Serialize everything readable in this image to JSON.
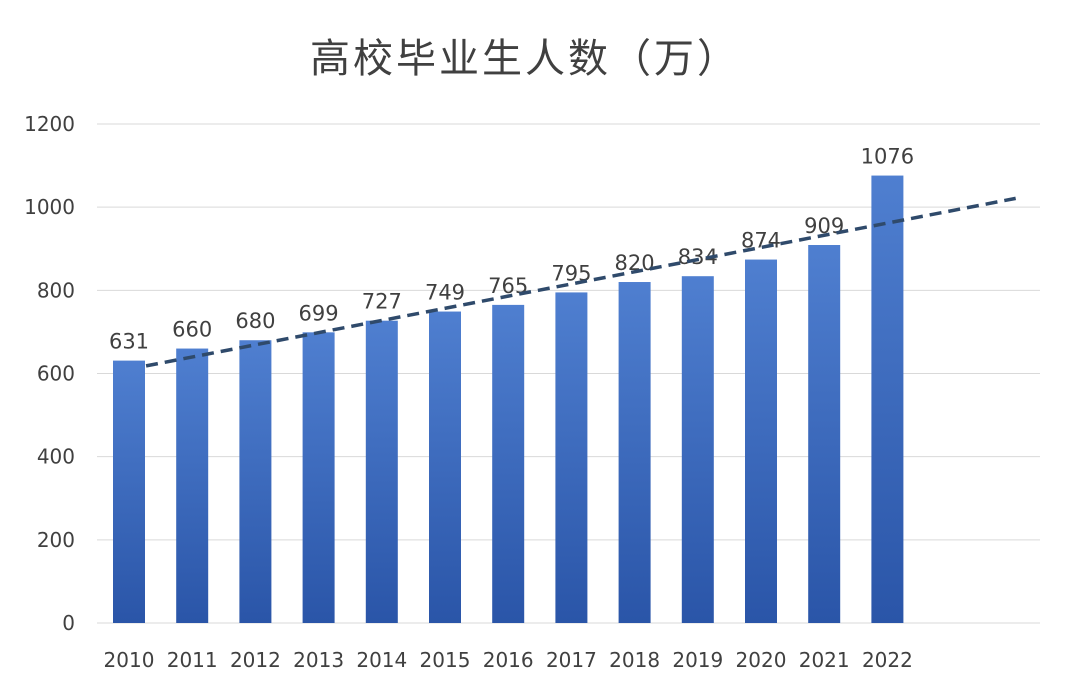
{
  "chart_data": {
    "type": "bar",
    "title": "高校毕业生人数（万）",
    "xlabel": "",
    "ylabel": "",
    "categories": [
      "2010",
      "2011",
      "2012",
      "2013",
      "2014",
      "2015",
      "2016",
      "2017",
      "2018",
      "2019",
      "2020",
      "2021",
      "2022"
    ],
    "values": [
      631,
      660,
      680,
      699,
      727,
      749,
      765,
      795,
      820,
      834,
      874,
      909,
      1076
    ],
    "data_labels": [
      "631",
      "660",
      "680",
      "699",
      "727",
      "749",
      "765",
      "795",
      "820",
      "834",
      "874",
      "909",
      "1076"
    ],
    "ylim": [
      0,
      1200
    ],
    "yticks": [
      "0",
      "200",
      "400",
      "600",
      "800",
      "1000",
      "1200"
    ],
    "grid": true,
    "legend": "none",
    "trendline": {
      "type": "linear",
      "style": "dashed",
      "color": "#2F4A6B"
    },
    "colors": {
      "bar_top": "#4F7FD0",
      "bar_bottom": "#2A55A8",
      "grid": "#D9D9D9",
      "text": "#404040"
    }
  }
}
